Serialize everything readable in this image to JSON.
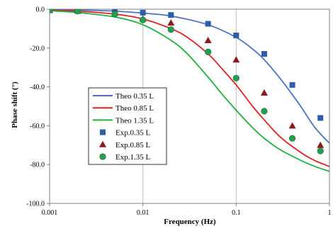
{
  "chart_data": {
    "type": "scatter",
    "title": "",
    "xlabel": "Frequency (Hz)",
    "ylabel": "Phase shift (°)",
    "xscale": "log",
    "xlim": [
      0.001,
      1
    ],
    "ylim": [
      -100,
      0
    ],
    "grid": "vertical-major",
    "legend_position": "center-left",
    "x_tick_labels": [
      "0.001",
      "0.01",
      "0.1",
      "1"
    ],
    "y_tick_labels": [
      "0.0",
      "-20.0",
      "-40.0",
      "-60.0",
      "-80.0",
      "-100.0"
    ],
    "series": [
      {
        "name": "Theo 0.35 L",
        "kind": "line",
        "color": "#4a72c4",
        "x": [
          0.001,
          0.002,
          0.005,
          0.01,
          0.02,
          0.05,
          0.1,
          0.15,
          0.2,
          0.3,
          0.4,
          0.5,
          0.7,
          1.0
        ],
        "y": [
          -0.2,
          -0.4,
          -1.0,
          -2.0,
          -3.5,
          -8.0,
          -14.5,
          -20.5,
          -26.0,
          -36.0,
          -44.0,
          -50.5,
          -61.0,
          -69.0
        ]
      },
      {
        "name": "Theo 0.85 L",
        "kind": "line",
        "color": "#e32020",
        "x": [
          0.001,
          0.002,
          0.005,
          0.01,
          0.02,
          0.03,
          0.05,
          0.07,
          0.1,
          0.15,
          0.2,
          0.3,
          0.5,
          0.7,
          1.0
        ],
        "y": [
          -0.5,
          -1.0,
          -2.5,
          -5.0,
          -10.0,
          -14.5,
          -23.0,
          -30.5,
          -39.0,
          -50.0,
          -57.0,
          -66.0,
          -74.0,
          -78.0,
          -81.0
        ]
      },
      {
        "name": "Theo 1.35 L",
        "kind": "line",
        "color": "#20b040",
        "x": [
          0.001,
          0.002,
          0.005,
          0.01,
          0.02,
          0.03,
          0.05,
          0.07,
          0.1,
          0.15,
          0.2,
          0.3,
          0.5,
          0.7,
          1.0
        ],
        "y": [
          -0.8,
          -1.7,
          -4.0,
          -8.0,
          -16.0,
          -23.0,
          -35.0,
          -43.5,
          -52.0,
          -61.0,
          -66.5,
          -72.5,
          -78.0,
          -81.0,
          -83.5
        ]
      },
      {
        "name": "Exp.0.35 L",
        "kind": "marker",
        "marker": "square",
        "color": "#2e5ea8",
        "x": [
          0.001,
          0.002,
          0.005,
          0.01,
          0.02,
          0.05,
          0.1,
          0.2,
          0.4,
          0.8
        ],
        "y": [
          -0.5,
          -0.8,
          -1.0,
          -1.8,
          -3.0,
          -7.5,
          -13.5,
          -23.0,
          -39.0,
          -56.0
        ]
      },
      {
        "name": "Exp.0.85 L",
        "kind": "marker",
        "marker": "triangle",
        "color": "#8b1a1a",
        "x": [
          0.001,
          0.002,
          0.005,
          0.01,
          0.02,
          0.05,
          0.1,
          0.2,
          0.4,
          0.8
        ],
        "y": [
          -0.5,
          -0.8,
          -2.0,
          -5.0,
          -7.0,
          -16.0,
          -26.0,
          -43.0,
          -60.0,
          -70.0
        ]
      },
      {
        "name": "Exp.1.35 L",
        "kind": "marker",
        "marker": "circle",
        "color": "#20a050",
        "x": [
          0.001,
          0.002,
          0.005,
          0.01,
          0.02,
          0.05,
          0.1,
          0.2,
          0.4,
          0.8
        ],
        "y": [
          -0.5,
          -1.0,
          -2.5,
          -5.5,
          -10.5,
          -22.0,
          -35.5,
          -52.5,
          -66.5,
          -73.0
        ]
      }
    ]
  }
}
